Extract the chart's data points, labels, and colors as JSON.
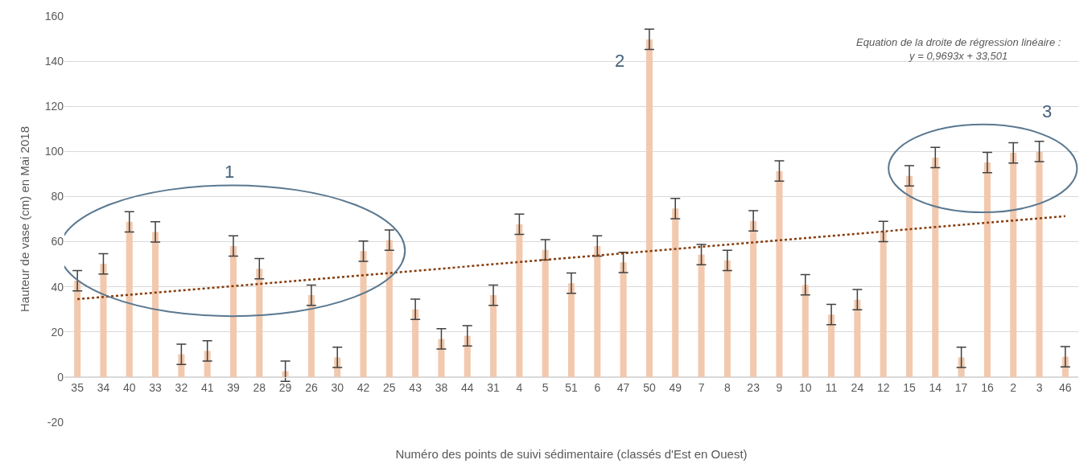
{
  "chart_data": {
    "type": "bar",
    "xlabel": "Numéro des points de suivi sédimentaire (classés d'Est en Ouest)",
    "ylabel": "Hauteur de vase (cm) en Mai 2018",
    "categories": [
      "35",
      "34",
      "40",
      "33",
      "32",
      "41",
      "39",
      "28",
      "29",
      "26",
      "30",
      "42",
      "25",
      "43",
      "38",
      "44",
      "31",
      "4",
      "5",
      "51",
      "6",
      "47",
      "50",
      "49",
      "7",
      "8",
      "23",
      "9",
      "10",
      "11",
      "24",
      "12",
      "15",
      "14",
      "17",
      "16",
      "2",
      "3",
      "46"
    ],
    "series": [
      {
        "color": "#f2c9ae",
        "values": [
          42.7,
          50.2,
          68.8,
          64.3,
          10.1,
          11.6,
          58.1,
          48.0,
          2.6,
          36.3,
          8.7,
          55.8,
          60.7,
          30.0,
          16.9,
          18.3,
          36.3,
          67.7,
          56.4,
          41.6,
          58.1,
          50.8,
          149.7,
          74.7,
          54.3,
          51.7,
          69.2,
          91.3,
          40.9,
          27.7,
          34.3,
          64.5,
          89.2,
          97.3,
          8.7,
          95.1,
          99.4,
          100.0,
          9.0
        ],
        "errors": [
          4.5,
          4.5,
          4.5,
          4.5,
          4.5,
          4.5,
          4.5,
          4.5,
          4.5,
          4.5,
          4.5,
          4.5,
          4.5,
          4.5,
          4.5,
          4.5,
          4.5,
          4.5,
          4.5,
          4.5,
          4.5,
          4.5,
          4.5,
          4.5,
          4.5,
          4.5,
          4.5,
          4.5,
          4.5,
          4.5,
          4.5,
          4.5,
          4.5,
          4.5,
          4.5,
          4.5,
          4.5,
          4.5,
          4.5
        ]
      },
      {
        "type": "line",
        "color": "#843c0c",
        "line_style": "dotted",
        "x": [
          "35",
          "46"
        ],
        "values": [
          34.5,
          71.3
        ]
      }
    ],
    "ylim": [
      -20,
      160
    ],
    "yticks": [
      -20,
      0,
      20,
      40,
      60,
      80,
      100,
      120,
      140,
      160
    ],
    "grid": "y",
    "annotations": [
      "1",
      "2",
      "3",
      "Equation de la droite de régression linéaire :\ny = 0,9693x + 33,501"
    ]
  }
}
